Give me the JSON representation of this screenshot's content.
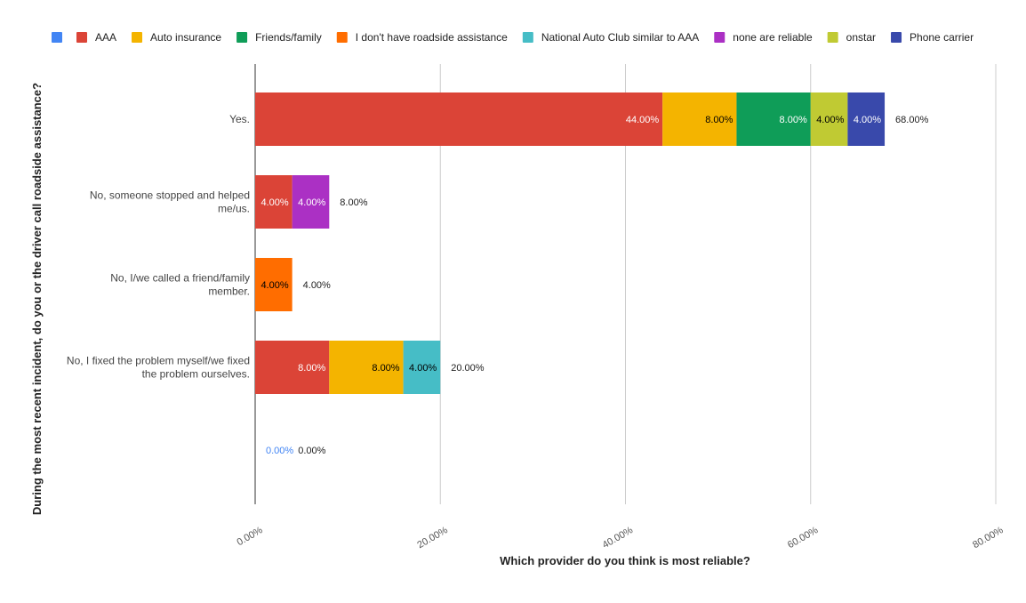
{
  "chart_data": {
    "type": "bar",
    "orientation": "horizontal",
    "stacked": true,
    "title": "",
    "xlabel": "Which provider do you think is most reliable?",
    "ylabel": "During the most recent incident, do you or the driver call roadside assistance?",
    "xlim": [
      0,
      80
    ],
    "xticks": [
      0,
      20,
      40,
      60,
      80
    ],
    "xtick_labels": [
      "0.00%",
      "20.00%",
      "40.00%",
      "60.00%",
      "80.00%"
    ],
    "grid": true,
    "legend_position": "top",
    "categories": [
      "Yes.",
      "No, someone stopped and helped me/us.",
      "No, I/we called a friend/family member.",
      "No, I fixed the problem myself/we fixed the problem ourselves.",
      ""
    ],
    "category_lines": [
      [
        "Yes."
      ],
      [
        "No, someone stopped and helped",
        "me/us."
      ],
      [
        "No, I/we called a friend/family",
        "member."
      ],
      [
        "No, I fixed the problem myself/we fixed",
        "the problem ourselves."
      ],
      []
    ],
    "series": [
      {
        "name": "",
        "color": "#4285f4",
        "values": [
          0,
          0,
          0,
          0,
          0
        ]
      },
      {
        "name": "AAA",
        "color": "#db4437",
        "values": [
          44,
          4,
          0,
          8,
          0
        ]
      },
      {
        "name": "Auto insurance",
        "color": "#f4b400",
        "values": [
          8,
          0,
          0,
          8,
          0
        ]
      },
      {
        "name": "Friends/family",
        "color": "#0f9d58",
        "values": [
          8,
          0,
          0,
          0,
          0
        ]
      },
      {
        "name": "I don't have roadside assistance",
        "color": "#ff6d00",
        "values": [
          0,
          0,
          4,
          0,
          0
        ]
      },
      {
        "name": "National Auto Club similar to AAA",
        "color": "#46bdc6",
        "values": [
          0,
          0,
          0,
          4,
          0
        ]
      },
      {
        "name": "none are reliable",
        "color": "#ab30c4",
        "values": [
          0,
          4,
          0,
          0,
          0
        ]
      },
      {
        "name": "onstar",
        "color": "#c0ca33",
        "values": [
          4,
          0,
          0,
          0,
          0
        ]
      },
      {
        "name": "Phone carrier",
        "color": "#3949ab",
        "values": [
          4,
          0,
          0,
          0,
          0
        ]
      }
    ],
    "segment_labels": [
      [
        "",
        "44.00%",
        "8.00%",
        "8.00%",
        "",
        "",
        "",
        "4.00%",
        "4.00%"
      ],
      [
        "",
        "4.00%",
        "",
        "",
        "",
        "",
        "4.00%",
        "",
        ""
      ],
      [
        "",
        "",
        "",
        "",
        "4.00%",
        "",
        "",
        "",
        ""
      ],
      [
        "",
        "8.00%",
        "8.00%",
        "",
        "",
        "4.00%",
        "",
        "",
        ""
      ],
      [
        "0.00%",
        "",
        "",
        "",
        "",
        "",
        "",
        "",
        ""
      ]
    ],
    "totals": [
      68,
      8,
      4,
      20,
      0
    ],
    "total_labels": [
      "68.00%",
      "8.00%",
      "4.00%",
      "20.00%",
      "0.00%"
    ]
  }
}
